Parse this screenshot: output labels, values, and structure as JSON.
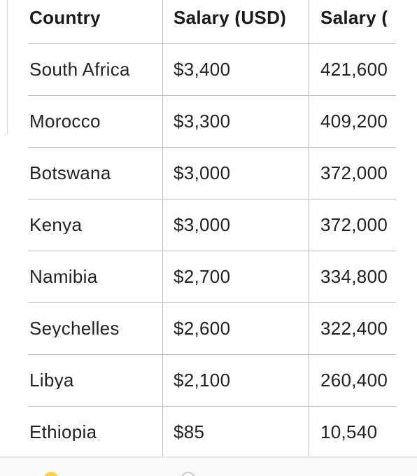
{
  "table": {
    "header": [
      "Country",
      "Salary (USD)",
      "Salary ("
    ],
    "rows": [
      [
        "South Africa",
        "$3,400",
        "421,600"
      ],
      [
        "Morocco",
        "$3,300",
        "409,200"
      ],
      [
        "Botswana",
        "$3,000",
        "372,000"
      ],
      [
        "Kenya",
        "$3,000",
        "372,000"
      ],
      [
        "Namibia",
        "$2,700",
        "334,800"
      ],
      [
        "Seychelles",
        "$2,600",
        "322,400"
      ],
      [
        "Libya",
        "$2,100",
        "260,400"
      ],
      [
        "Ethiopia",
        "$85",
        "10,540"
      ]
    ]
  }
}
